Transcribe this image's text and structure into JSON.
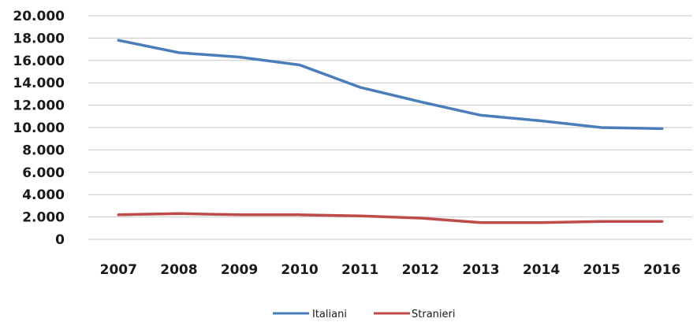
{
  "chart_data": {
    "type": "line",
    "title": "",
    "xlabel": "",
    "ylabel": "",
    "categories": [
      "2007",
      "2008",
      "2009",
      "2010",
      "2011",
      "2012",
      "2013",
      "2014",
      "2015",
      "2016"
    ],
    "ylim": [
      0,
      20000
    ],
    "yticks": [
      0,
      2000,
      4000,
      6000,
      8000,
      10000,
      12000,
      14000,
      16000,
      18000,
      20000
    ],
    "ytick_labels": [
      "0",
      "2.000",
      "4.000",
      "6.000",
      "8.000",
      "10.000",
      "12.000",
      "14.000",
      "16.000",
      "18.000",
      "20.000"
    ],
    "grid": "horizontal",
    "legend_position": "bottom",
    "series": [
      {
        "name": "Italiani",
        "color": "#4a7ebb",
        "values": [
          17800,
          16700,
          16300,
          15600,
          13600,
          12300,
          11100,
          10600,
          10000,
          9900
        ]
      },
      {
        "name": "Stranieri",
        "color": "#be4b48",
        "values": [
          2200,
          2300,
          2200,
          2200,
          2100,
          1900,
          1500,
          1500,
          1600,
          1600
        ]
      }
    ]
  }
}
